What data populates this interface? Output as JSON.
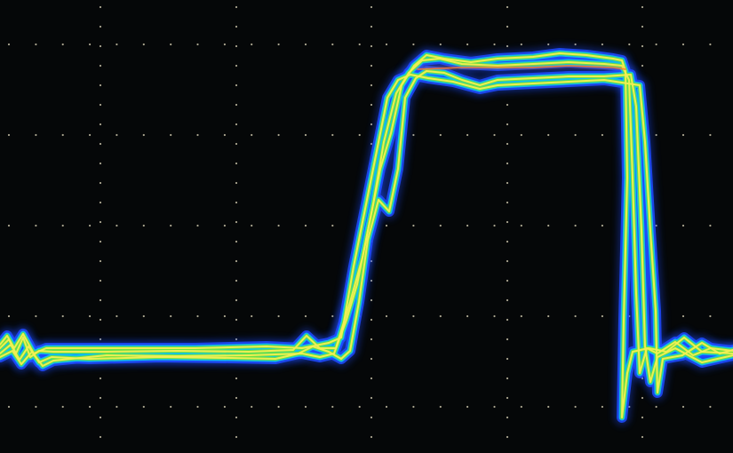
{
  "display": {
    "background_color": "#050708",
    "graticule_color": "#c9c2a8",
    "trace_colors": {
      "outer_glow": "#1e4bff",
      "mid_cyan": "#12c7e6",
      "inner_green": "#6fe23c",
      "core_yellow": "#f2ef55",
      "hot_core": "#ff7a2a"
    },
    "graticule": {
      "vertical_divisions": 5,
      "horizontal_divisions": 8,
      "dotted": true
    },
    "persistence_mode": true,
    "waveform_shape": "positive pulse with ringing on falling edge"
  }
}
